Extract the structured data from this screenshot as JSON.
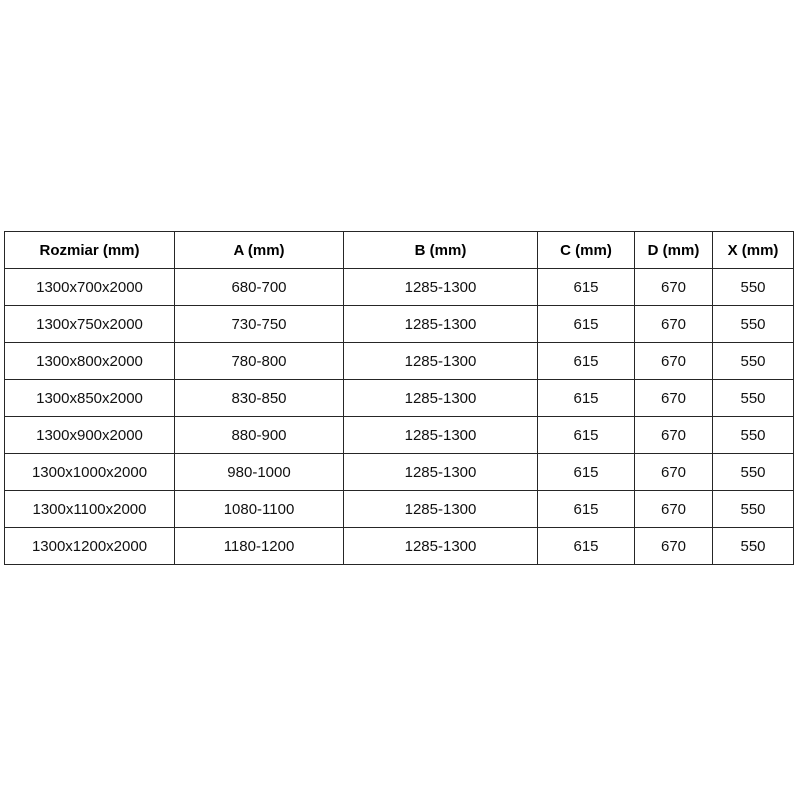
{
  "page": {
    "background_color": "#ffffff",
    "text_color": "#111111",
    "border_color": "#262626"
  },
  "table": {
    "headers": [
      "Rozmiar (mm)",
      "A (mm)",
      "B (mm)",
      "C (mm)",
      "D (mm)",
      "X (mm)"
    ],
    "rows": [
      [
        "1300x700x2000",
        "680-700",
        "1285-1300",
        "615",
        "670",
        "550"
      ],
      [
        "1300x750x2000",
        "730-750",
        "1285-1300",
        "615",
        "670",
        "550"
      ],
      [
        "1300x800x2000",
        "780-800",
        "1285-1300",
        "615",
        "670",
        "550"
      ],
      [
        "1300x850x2000",
        "830-850",
        "1285-1300",
        "615",
        "670",
        "550"
      ],
      [
        "1300x900x2000",
        "880-900",
        "1285-1300",
        "615",
        "670",
        "550"
      ],
      [
        "1300x1000x2000",
        "980-1000",
        "1285-1300",
        "615",
        "670",
        "550"
      ],
      [
        "1300x1100x2000",
        "1080-1100",
        "1285-1300",
        "615",
        "670",
        "550"
      ],
      [
        "1300x1200x2000",
        "1180-1200",
        "1285-1300",
        "615",
        "670",
        "550"
      ]
    ]
  }
}
